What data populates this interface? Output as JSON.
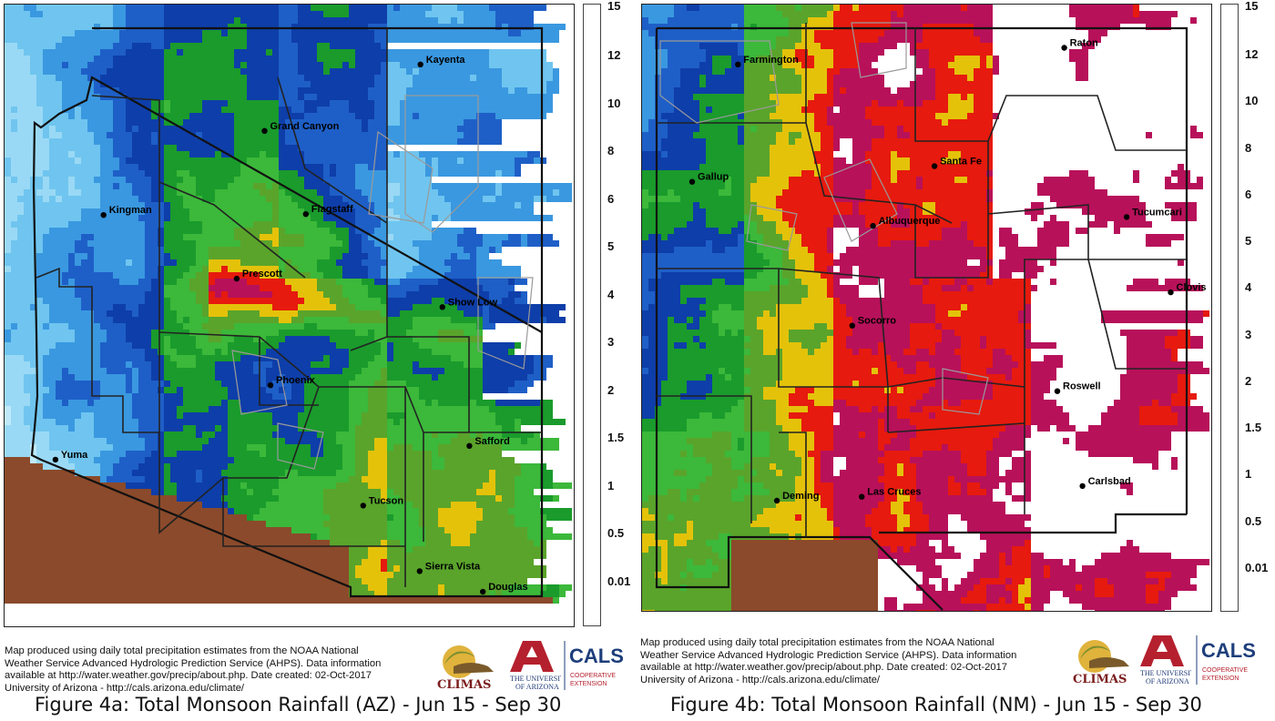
{
  "colors": {
    "mexico": "#8b4a2b",
    "state_border": "#111111",
    "county_border": "#222222",
    "reservation_border": "#9a9a9a",
    "scale": [
      "#bfe9fb",
      "#9ad9f5",
      "#6fc5ef",
      "#3a98e0",
      "#1e5fc7",
      "#0e3ea9",
      "#1a9b2c",
      "#3cb83a",
      "#5aa42b",
      "#e4c20a",
      "#e61a0e",
      "#b7115a",
      "#ffffff"
    ]
  },
  "legend": {
    "ticks": [
      "15",
      "12",
      "10",
      "8",
      "6",
      "5",
      "4",
      "3",
      "2",
      "1.5",
      "1",
      "0.5",
      "0.01"
    ]
  },
  "footer_text": {
    "line1": "Map produced using daily total precipitation estimates from the NOAA National",
    "line2": "Weather Service Advanced Hydrologic Prediction Service (AHPS). Data information",
    "line3": "available at http://water.weather.gov/precip/about.php. Date created: 02-Oct-2017",
    "line4": "University of Arizona - http://cals.arizona.edu/climate/"
  },
  "logos": {
    "climas": "CLIMAS",
    "ua_line1": "THE UNIVERSITY",
    "ua_line2": "OF ARIZONA",
    "cals": "CALS",
    "cals_line1": "COOPERATIVE",
    "cals_line2": "EXTENSION",
    "ua_icon": "block-a-icon",
    "climas_icon": "sun-swirl-icon"
  },
  "panels": {
    "az": {
      "caption": "Figure 4a: Total Monsoon Rainfall (AZ) - Jun 15 - Sep 30",
      "cities": [
        {
          "name": "Kayenta",
          "lon": -110.29,
          "lat": 36.73
        },
        {
          "name": "Grand Canyon",
          "lon": -112.14,
          "lat": 36.05
        },
        {
          "name": "Kingman",
          "lon": -114.05,
          "lat": 35.19
        },
        {
          "name": "Flagstaff",
          "lon": -111.65,
          "lat": 35.2
        },
        {
          "name": "Prescott",
          "lon": -112.47,
          "lat": 34.54
        },
        {
          "name": "Show Low",
          "lon": -110.03,
          "lat": 34.25
        },
        {
          "name": "Phoenix",
          "lon": -112.07,
          "lat": 33.45
        },
        {
          "name": "Safford",
          "lon": -109.71,
          "lat": 32.83
        },
        {
          "name": "Yuma",
          "lon": -114.62,
          "lat": 32.69
        },
        {
          "name": "Tucson",
          "lon": -110.97,
          "lat": 32.22
        },
        {
          "name": "Sierra Vista",
          "lon": -110.3,
          "lat": 31.55
        },
        {
          "name": "Douglas",
          "lon": -109.55,
          "lat": 31.34
        }
      ]
    },
    "nm": {
      "caption": "Figure 4b: Total Monsoon Rainfall (NM) - Jun 15 - Sep 30",
      "cities": [
        {
          "name": "Farmington",
          "lon": -108.21,
          "lat": 36.73
        },
        {
          "name": "Raton",
          "lon": -104.44,
          "lat": 36.9
        },
        {
          "name": "Santa Fe",
          "lon": -105.94,
          "lat": 35.69
        },
        {
          "name": "Gallup",
          "lon": -108.74,
          "lat": 35.53
        },
        {
          "name": "Albuquerque",
          "lon": -106.65,
          "lat": 35.08
        },
        {
          "name": "Tucumcari",
          "lon": -103.72,
          "lat": 35.17
        },
        {
          "name": "Clovis",
          "lon": -103.21,
          "lat": 34.4
        },
        {
          "name": "Socorro",
          "lon": -106.89,
          "lat": 34.06
        },
        {
          "name": "Roswell",
          "lon": -104.52,
          "lat": 33.39
        },
        {
          "name": "Deming",
          "lon": -107.76,
          "lat": 32.27
        },
        {
          "name": "Las Cruces",
          "lon": -106.78,
          "lat": 32.31
        },
        {
          "name": "Carlsbad",
          "lon": -104.23,
          "lat": 32.42
        }
      ]
    }
  }
}
